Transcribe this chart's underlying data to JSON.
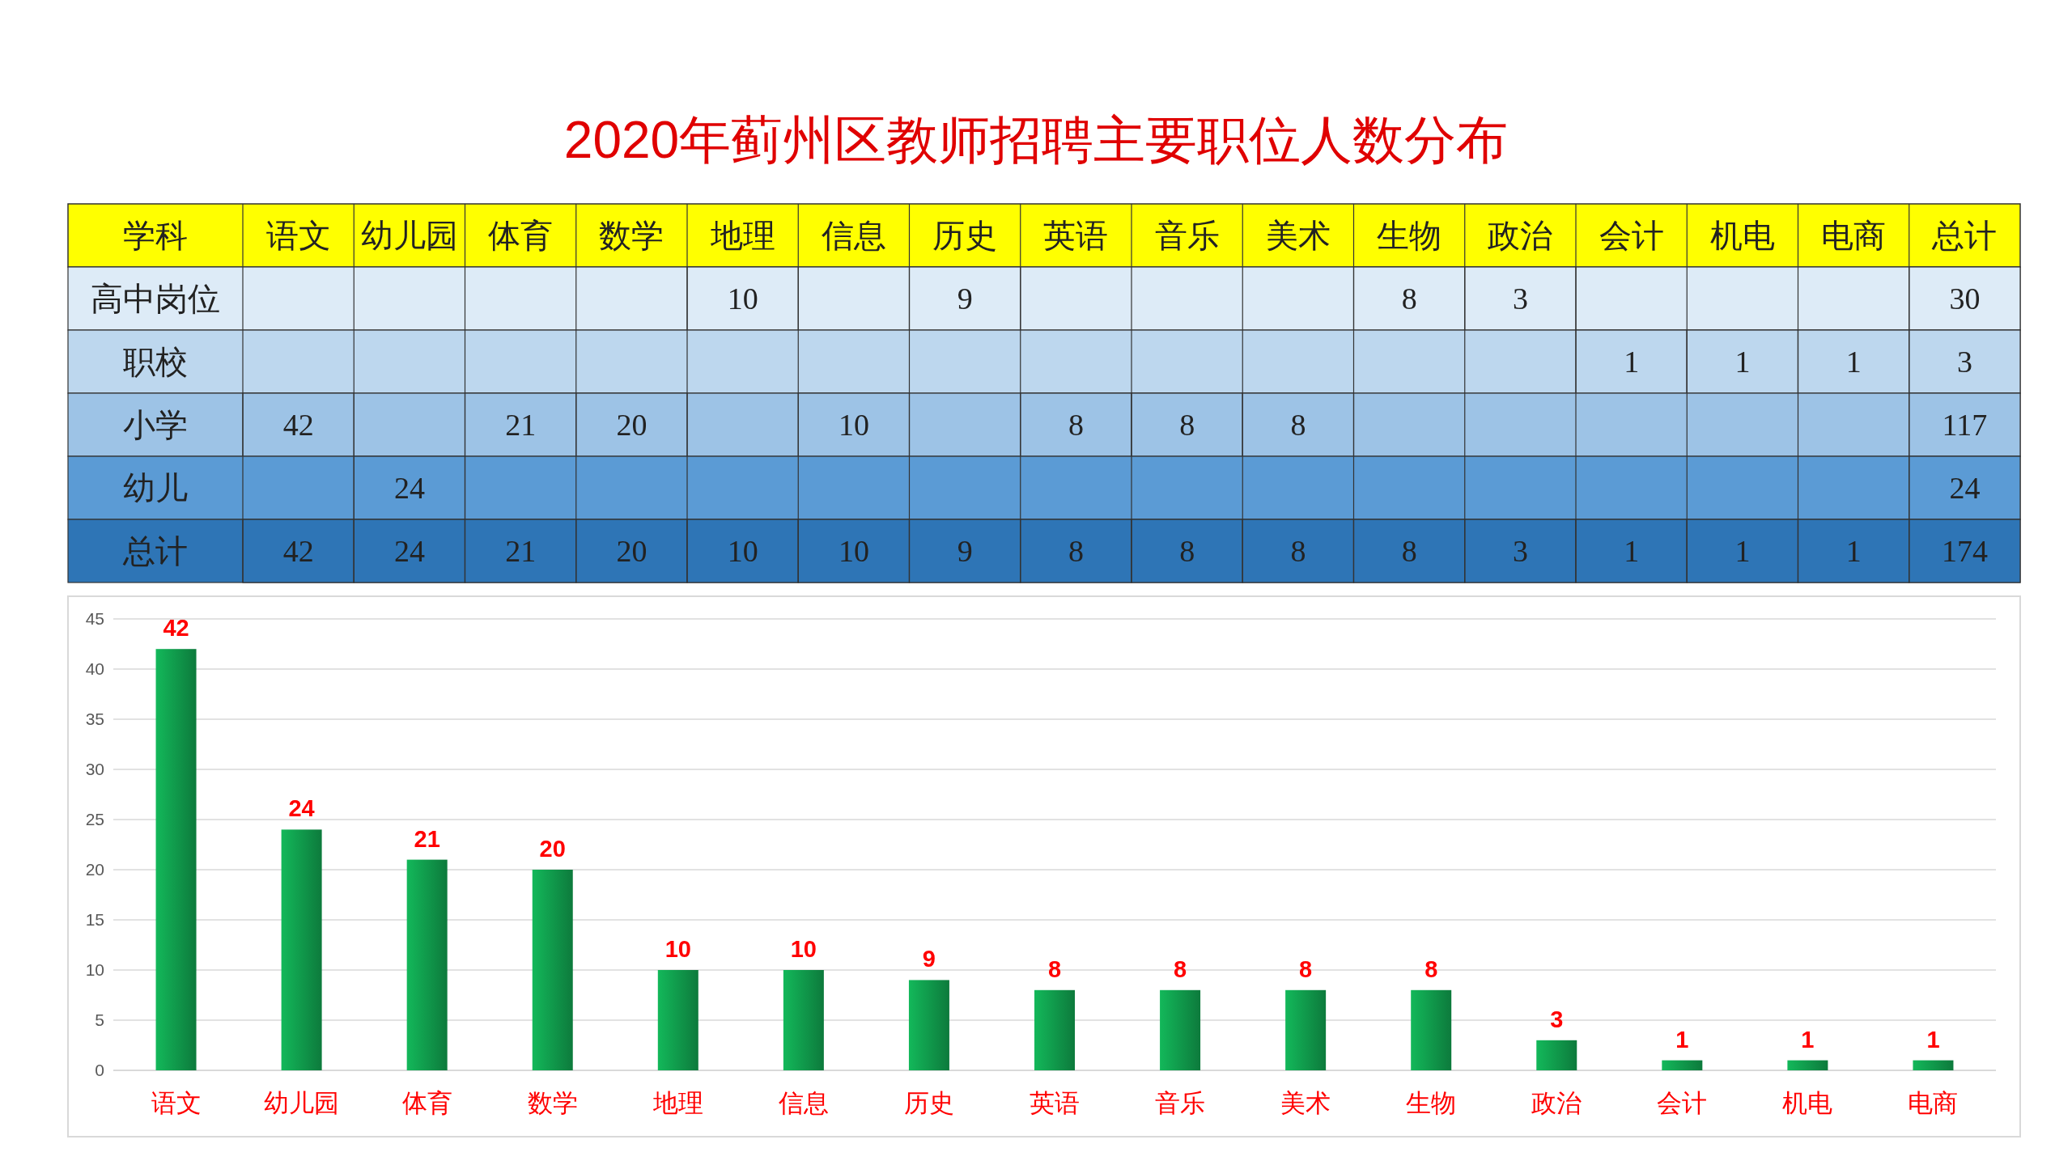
{
  "chart_data": [
    {
      "type": "heatmap",
      "data_labels": true,
      "title": "2020年蓟州区教师招聘主要职位人数分布",
      "ylabel": "学科",
      "categories": [
        "语文",
        "幼儿园",
        "体育",
        "数学",
        "地理",
        "信息",
        "历史",
        "英语",
        "音乐",
        "美术",
        "生物",
        "政治",
        "会计",
        "机电",
        "电商",
        "总计"
      ],
      "y_categories": [
        "高中岗位",
        "职校",
        "小学",
        "幼儿",
        "总计"
      ],
      "cells": [
        [
          null,
          null,
          null,
          null,
          10,
          null,
          9,
          null,
          null,
          null,
          8,
          3,
          null,
          null,
          null,
          30
        ],
        [
          null,
          null,
          null,
          null,
          null,
          null,
          null,
          null,
          null,
          null,
          null,
          null,
          1,
          1,
          1,
          3
        ],
        [
          42,
          null,
          21,
          20,
          null,
          10,
          null,
          8,
          8,
          8,
          null,
          null,
          null,
          null,
          null,
          117
        ],
        [
          null,
          24,
          null,
          null,
          null,
          null,
          null,
          null,
          null,
          null,
          null,
          null,
          null,
          null,
          null,
          24
        ],
        [
          42,
          24,
          21,
          20,
          10,
          10,
          9,
          8,
          8,
          8,
          8,
          3,
          1,
          1,
          1,
          174
        ]
      ]
    },
    {
      "type": "bar",
      "categories": [
        "语文",
        "幼儿园",
        "体育",
        "数学",
        "地理",
        "信息",
        "历史",
        "英语",
        "音乐",
        "美术",
        "生物",
        "政治",
        "会计",
        "机电",
        "电商"
      ],
      "values": [
        42,
        24,
        21,
        20,
        10,
        10,
        9,
        8,
        8,
        8,
        8,
        3,
        1,
        1,
        1
      ],
      "color": "#13b85a",
      "ylim": [
        0,
        45
      ],
      "yticks": [
        0,
        5,
        10,
        15,
        20,
        25,
        30,
        35,
        40,
        45
      ],
      "grid": "y",
      "data_labels": true
    }
  ]
}
